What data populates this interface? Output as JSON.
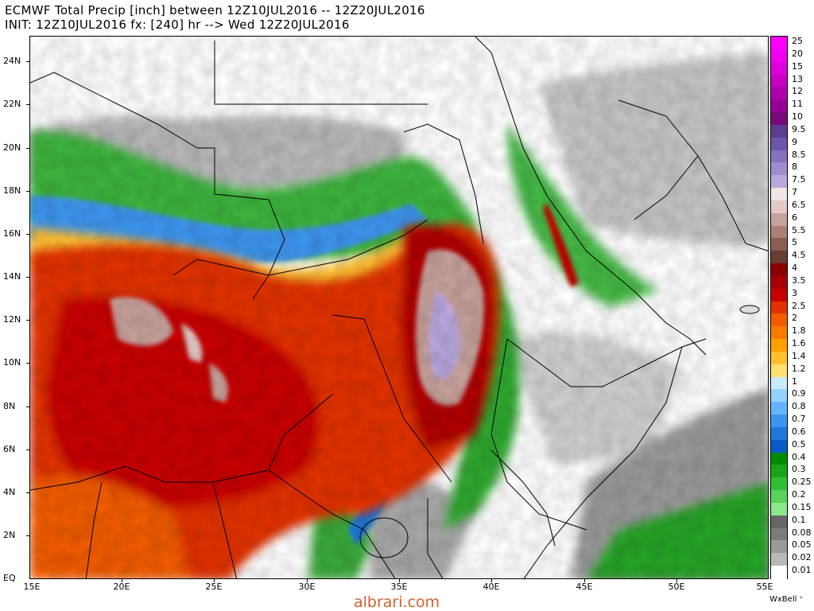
{
  "title": {
    "line1": "ECMWF Total Precip [inch] between 12Z10JUL2016 -- 12Z20JUL2016",
    "line2": "INIT: 12Z10JUL2016 fx: [240] hr --> Wed 12Z20JUL2016"
  },
  "axes": {
    "lat_labels": [
      "24N",
      "22N",
      "20N",
      "18N",
      "16N",
      "14N",
      "12N",
      "10N",
      "8N",
      "6N",
      "4N",
      "2N",
      "EQ"
    ],
    "lon_labels": [
      "15E",
      "20E",
      "25E",
      "30E",
      "35E",
      "40E",
      "45E",
      "50E",
      "55E"
    ]
  },
  "legend": {
    "levels": [
      "25",
      "20",
      "15",
      "13",
      "12",
      "11",
      "10",
      "9.5",
      "9",
      "8.5",
      "8",
      "7.5",
      "7",
      "6.5",
      "6",
      "5.5",
      "5",
      "4.5",
      "4",
      "3.5",
      "3",
      "2.5",
      "2",
      "1.8",
      "1.6",
      "1.4",
      "1.2",
      "1",
      "0.9",
      "0.8",
      "0.7",
      "0.6",
      "0.5",
      "0.4",
      "0.3",
      "0.25",
      "0.2",
      "0.15",
      "0.1",
      "0.08",
      "0.05",
      "0.02",
      "0.01"
    ],
    "colors": [
      "#ff00ff",
      "#f000ef",
      "#de00dc",
      "#c800c4",
      "#b000ad",
      "#980095",
      "#7a0a7c",
      "#5b3e8f",
      "#6c56a8",
      "#8571bd",
      "#9e8ccf",
      "#b9a8de",
      "#f0e6e8",
      "#e2c8c6",
      "#c8a29c",
      "#ad8076",
      "#8c5d52",
      "#6a3d34",
      "#8d0000",
      "#a80000",
      "#c80000",
      "#e23200",
      "#f25c00",
      "#fa7a00",
      "#ffa000",
      "#ffc030",
      "#ffe070",
      "#c8ecff",
      "#96d2ff",
      "#64b4ff",
      "#3c96f0",
      "#1e78dc",
      "#0a5ac8",
      "#008c00",
      "#19a519",
      "#32be32",
      "#5ad25a",
      "#8ce68c",
      "#666666",
      "#7c7c7c",
      "#9a9a9a",
      "#b9b9b9",
      "#ffffff"
    ]
  },
  "brand": {
    "name": "WxBell",
    "dot": "°"
  },
  "watermark": "albrari.com",
  "map": {
    "region": "Northeast Africa / Arabian Peninsula",
    "variable": "total precipitation (inch)",
    "lat_range": [
      "EQ",
      "25N"
    ],
    "lon_range": [
      "15E",
      "55E"
    ]
  }
}
